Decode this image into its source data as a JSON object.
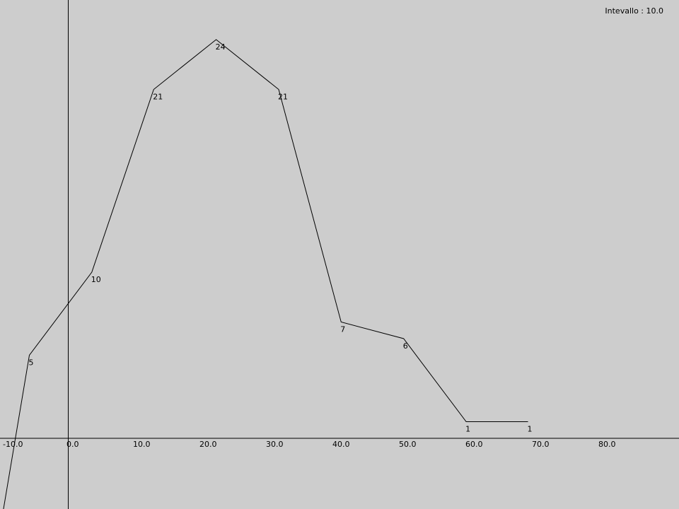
{
  "interval_label": "Intevallo : 10.0",
  "colors": {
    "background": "#cdcdcd",
    "line": "#000000",
    "axis": "#000000"
  },
  "chart_data": {
    "type": "line",
    "title": "",
    "xlabel": "",
    "ylabel": "",
    "grid": false,
    "x_ticks": [
      "-10.0",
      "0.0",
      "10.0",
      "20.0",
      "30.0",
      "40.0",
      "50.0",
      "60.0",
      "70.0",
      "80.0"
    ],
    "xlim": [
      -10.0,
      90.0
    ],
    "ylim": [
      -10,
      26
    ],
    "series": [
      {
        "points": [
          {
            "x": -10.0,
            "y": -5
          },
          {
            "x": -5.8,
            "y": 5,
            "label": "5"
          },
          {
            "x": 3.6,
            "y": 10,
            "label": "10"
          },
          {
            "x": 12.9,
            "y": 21,
            "label": "21"
          },
          {
            "x": 22.3,
            "y": 24,
            "label": "24"
          },
          {
            "x": 31.7,
            "y": 21,
            "label": "21"
          },
          {
            "x": 41.1,
            "y": 7,
            "label": "7"
          },
          {
            "x": 50.5,
            "y": 6,
            "label": "6"
          },
          {
            "x": 59.9,
            "y": 1,
            "label": "1"
          },
          {
            "x": 69.2,
            "y": 1,
            "label": "1"
          }
        ]
      }
    ]
  }
}
